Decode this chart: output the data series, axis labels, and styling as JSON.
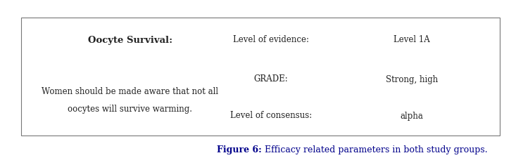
{
  "fig_width": 7.43,
  "fig_height": 2.35,
  "background_color": "#ffffff",
  "box_edge_color": "#777777",
  "title_bold": "Oocyte Survival:",
  "body_line1": "Women should be made aware that not all",
  "body_line2": "oocytes will survive warming.",
  "label1": "Level of evidence:",
  "value1": "Level 1A",
  "label2": "GRADE:",
  "value2": "Strong, high",
  "label3": "Level of consensus:",
  "value3": "alpha",
  "caption_bold": "Figure 6:",
  "caption_normal": " Efficacy related parameters in both study groups.",
  "caption_color": "#00008B",
  "text_color": "#222222",
  "font_size_title": 9.5,
  "font_size_body": 8.5,
  "font_size_caption": 9
}
